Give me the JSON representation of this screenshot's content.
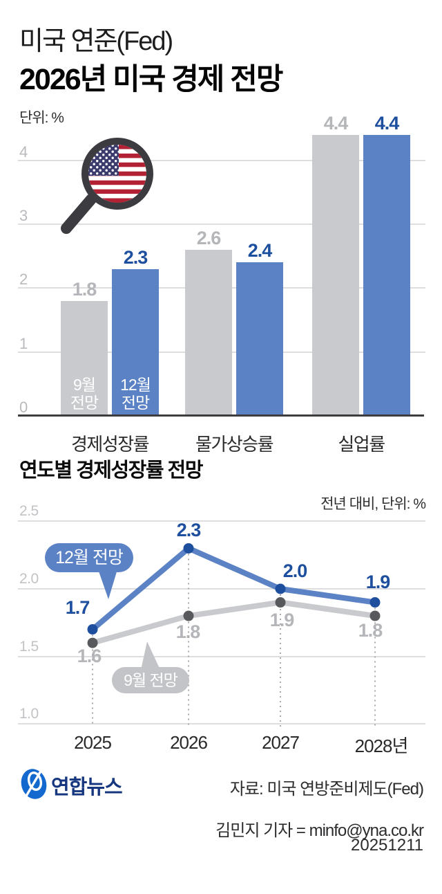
{
  "header": {
    "kicker": "미국 연준(Fed)",
    "title": "2026년 미국 경제 전망",
    "unit_note": "단위: %"
  },
  "colors": {
    "sep_series": "#c9cacd",
    "dec_series": "#5b82c4",
    "sep_label": "#b5b6b9",
    "dec_label": "#1e4f9e",
    "sep_dot": "#58595c",
    "dec_dot": "#1e4f9e"
  },
  "chart_data": [
    {
      "type": "bar",
      "title": "2026년 미국 경제 전망",
      "unit": "단위: %",
      "categories": [
        "경제성장률",
        "물가상승률",
        "실업률"
      ],
      "series": [
        {
          "name": "9월 전망",
          "values": [
            1.8,
            2.6,
            4.4
          ]
        },
        {
          "name": "12월 전망",
          "values": [
            2.3,
            2.4,
            4.4
          ]
        }
      ],
      "ylim": [
        0,
        4.6
      ],
      "yticks": [
        0,
        1,
        2,
        3,
        4
      ],
      "ytick_labels": [
        "0",
        "1",
        "2",
        "3",
        "4"
      ],
      "grid": true,
      "legend_position": "inside-first-bars"
    },
    {
      "type": "line",
      "title": "연도별 경제성장률 전망",
      "note": "전년 대비, 단위: %",
      "x": [
        "2025",
        "2026",
        "2027",
        "2028년"
      ],
      "series": [
        {
          "name": "12월 전망",
          "values": [
            1.7,
            2.3,
            2.0,
            1.9
          ]
        },
        {
          "name": "9월 전망",
          "values": [
            1.6,
            1.8,
            1.9,
            1.8
          ]
        }
      ],
      "ylim": [
        1.0,
        2.5
      ],
      "yticks": [
        1.0,
        1.5,
        2.0,
        2.5
      ],
      "ytick_labels": [
        "1.0",
        "1.5",
        "2.0",
        "2.5"
      ],
      "grid": true,
      "legend_position": "callout-bubbles"
    }
  ],
  "footer": {
    "logo_text": "연합뉴스",
    "source": "자료: 미국 연방준비제도(Fed)",
    "byline": "김민지 기자 = minfo@yna.co.kr",
    "date": "20251211"
  }
}
